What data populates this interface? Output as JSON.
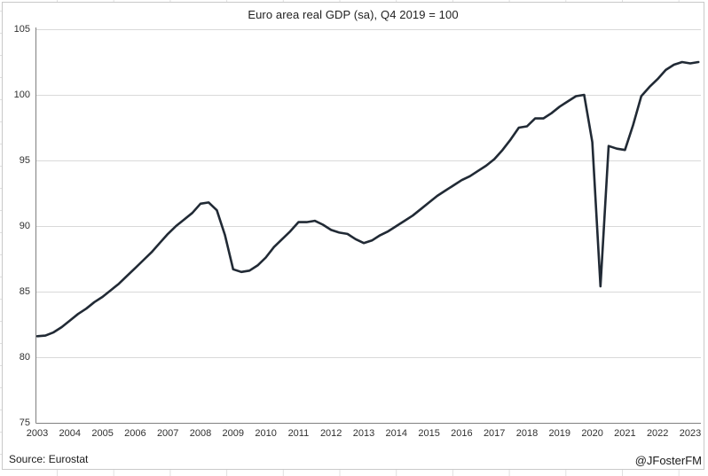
{
  "title": "Euro area real GDP (sa), Q4 2019 = 100",
  "footer": {
    "source": "Source: Eurostat",
    "handle": "@JFosterFM"
  },
  "colors": {
    "line": "#212a35",
    "gridline": "#d9d9d9",
    "axis": "#808080",
    "chart_border": "#c9c9c9",
    "label_text": "#303030",
    "spreadsheet_gridline": "#e0e0e0"
  },
  "chart_data": {
    "type": "line",
    "title": "Euro area real GDP (sa), Q4 2019 = 100",
    "xlabel": "",
    "ylabel": "",
    "ylim": [
      75,
      105
    ],
    "y_ticks": [
      75,
      80,
      85,
      90,
      95,
      100,
      105
    ],
    "x_tick_labels": [
      "2003",
      "2004",
      "2005",
      "2006",
      "2007",
      "2008",
      "2009",
      "2010",
      "2011",
      "2012",
      "2013",
      "2014",
      "2015",
      "2016",
      "2017",
      "2018",
      "2019",
      "2020",
      "2021",
      "2022",
      "2023"
    ],
    "grid": "horizontal-only",
    "legend": "none",
    "frequency": "quarterly",
    "x_first": "2003-Q1",
    "x_last": "2023-Q2",
    "series": [
      {
        "name": "Euro area real GDP index (sa, Q4 2019 = 100)",
        "values": [
          81.6,
          81.65,
          81.9,
          82.3,
          82.8,
          83.3,
          83.7,
          84.2,
          84.6,
          85.1,
          85.6,
          86.2,
          86.8,
          87.4,
          88.0,
          88.7,
          89.4,
          90.0,
          90.5,
          91.0,
          91.7,
          91.8,
          91.2,
          89.3,
          86.7,
          86.5,
          86.6,
          87.0,
          87.6,
          88.4,
          89.0,
          89.6,
          90.3,
          90.3,
          90.4,
          90.1,
          89.7,
          89.5,
          89.4,
          89.0,
          88.7,
          88.9,
          89.3,
          89.6,
          90.0,
          90.4,
          90.8,
          91.3,
          91.8,
          92.3,
          92.7,
          93.1,
          93.5,
          93.8,
          94.2,
          94.6,
          95.1,
          95.8,
          96.6,
          97.5,
          97.6,
          98.2,
          98.2,
          98.6,
          99.1,
          99.5,
          99.9,
          100.0,
          96.4,
          85.4,
          96.1,
          95.9,
          95.8,
          97.7,
          99.9,
          100.6,
          101.2,
          101.9,
          102.3,
          102.5,
          102.4,
          102.5
        ]
      }
    ],
    "annotations": {
      "source": "Source: Eurostat",
      "credit": "@JFosterFM"
    }
  }
}
